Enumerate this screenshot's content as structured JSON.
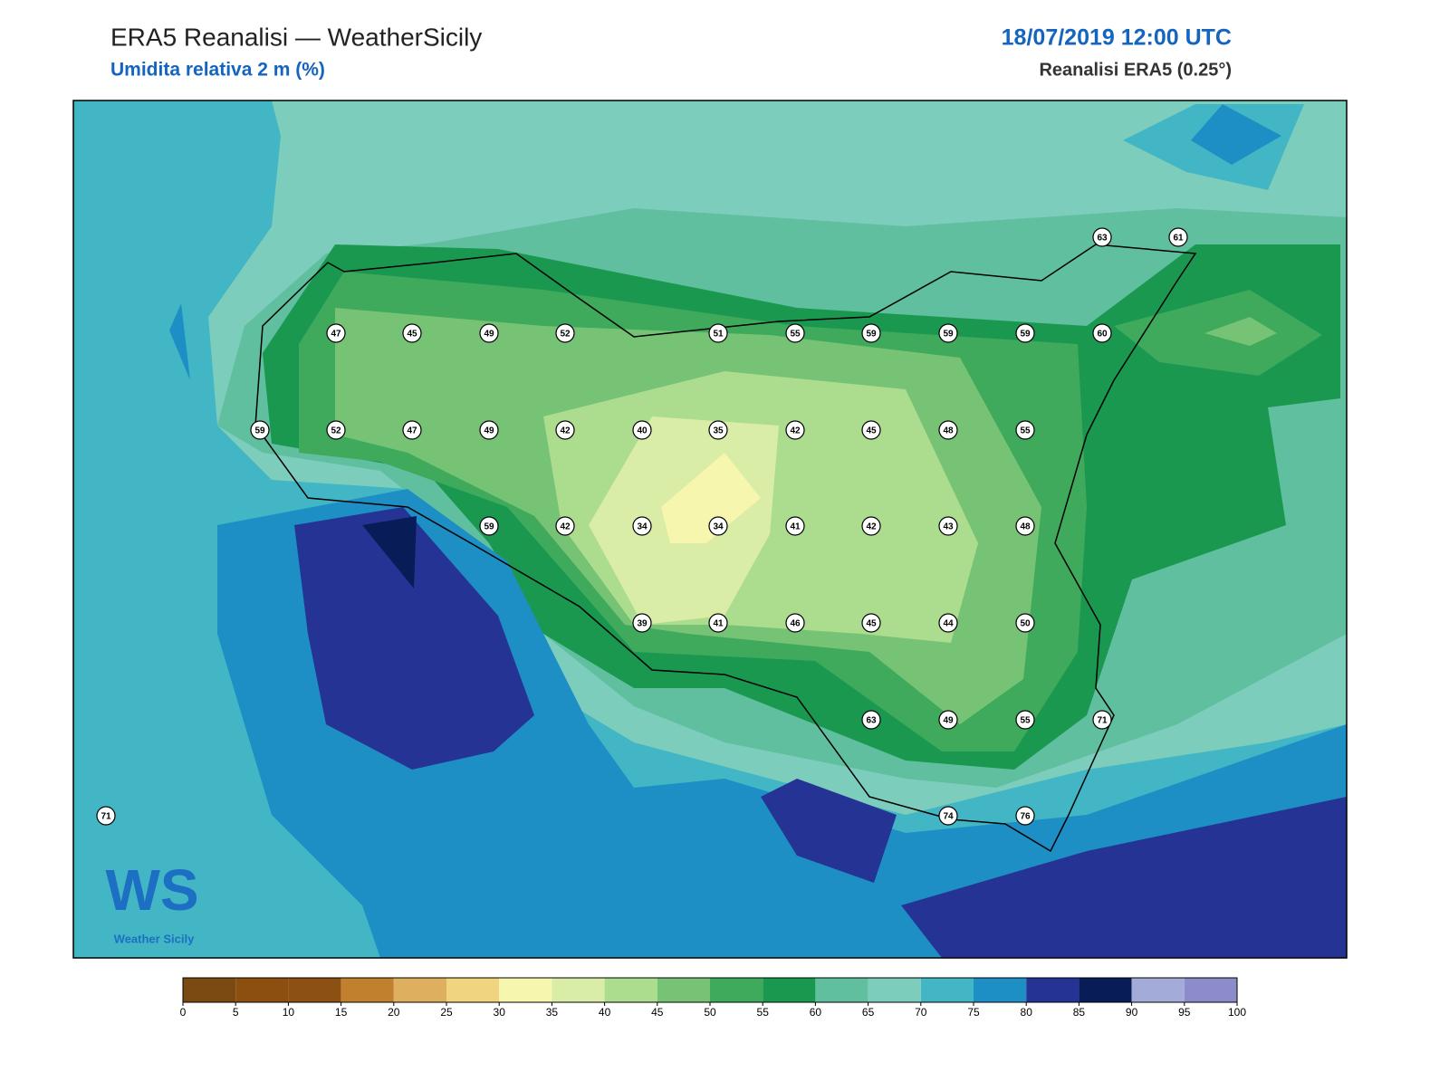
{
  "header": {
    "title": "ERA5 Reanalisi — WeatherSicily",
    "subtitle": "Umidita relativa 2 m (%)",
    "datetime": "18/07/2019 12:00 UTC",
    "source": "Reanalisi ERA5 (0.25°)"
  },
  "stations": [
    63,
    61,
    47,
    45,
    49,
    52,
    51,
    55,
    59,
    59,
    59,
    60,
    59,
    52,
    47,
    49,
    42,
    40,
    35,
    42,
    45,
    48,
    55,
    59,
    42,
    34,
    34,
    41,
    42,
    43,
    48,
    39,
    41,
    46,
    45,
    44,
    50,
    63,
    49,
    55,
    71,
    71,
    74,
    76
  ],
  "colorbar": {
    "ticks": [
      0,
      5,
      10,
      15,
      20,
      25,
      30,
      35,
      40,
      45,
      50,
      55,
      60,
      65,
      70,
      75,
      80,
      85,
      90,
      95,
      100
    ],
    "colors": [
      "#7b4a12",
      "#8c4f10",
      "#8c5012",
      "#c0802e",
      "#deaf5e",
      "#f0d47f",
      "#f6f6ae",
      "#d9eda6",
      "#acdc8e",
      "#76c375",
      "#3fa95c",
      "#1a9850",
      "#5fbf9f",
      "#7dcdbc",
      "#42b6c4",
      "#1d8fc4",
      "#253494",
      "#081d58",
      "#a3acd9",
      "#8c8cca"
    ]
  },
  "logo": {
    "mark": "WS",
    "name": "Weather Sicily"
  }
}
